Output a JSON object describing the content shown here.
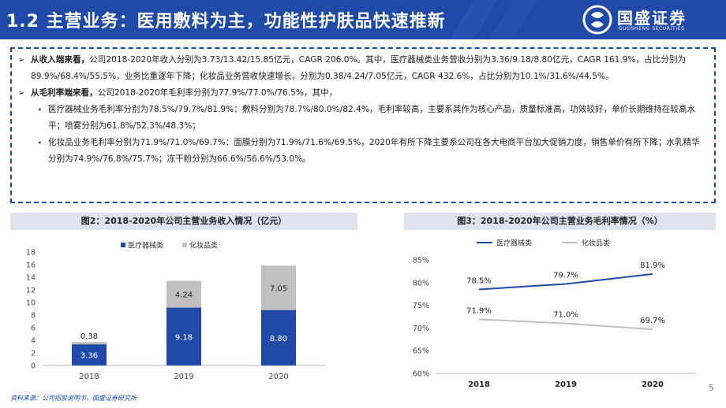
{
  "header": {
    "title": "1.2 主营业务：医用敷料为主，功能性护肤品快速推新",
    "logo_cn": "国盛证券",
    "logo_en": "GUOSHENG SECURITIES"
  },
  "colors": {
    "brand": "#1f4aa8",
    "medical": "#1f4aa8",
    "cosmetics": "#c0c0c0"
  },
  "icons": {
    "bullet_main": "arrow-bullet-icon",
    "bullet_sub": "dot-bullet-icon",
    "logo": "guosheng-logo-icon"
  },
  "content": {
    "p1": {
      "lead": "从收入端来看，",
      "text": "公司2018-2020年收入分别为3.73/13.42/15.85亿元，CAGR 206.0%。其中，医疗器械类业务营收分别为3.36/9.18/8.80亿元，CAGR 161.9%，占比分别为89.9%/68.4%/55.5%，业务比重逐年下降；化妆品业务营收快速增长，分别为0.38/4.24/7.05亿元，CAGR 432.6%，占比分别为10.1%/31.6%/44.5%。"
    },
    "p2": {
      "lead": "从毛利率端来看，",
      "text": "公司2018-2020年毛利率分别为77.9%/77.0%/76.5%，其中，"
    },
    "sub1": "医疗器械业务毛利率分别为78.5%/79.7%/81.9%：敷料分别为78.7%/80.0%/82.4%，毛利率较高，主要系其作为核心产品，质量标准高，功效较好，单价长期维持在较高水平；喷雾分别为61.8%/52.3%/48.3%；",
    "sub2": "化妆品业务毛利率分别为71.9%/71.0%/69.7%：面膜分别为71.9%/71.6%/69.5%，2020年有所下降主要系公司在各大电商平台加大促销力度，销售单价有所下降；水乳精华分别为74.9%/76.8%/75.7%；冻干粉分别为66.6%/56.6%/53.0%。"
  },
  "figures": {
    "fig1_title": "图2：2018-2020年公司主营业务收入情况（亿元）",
    "fig2_title": "图3：2018-2020年公司主营业务毛利率情况（%）"
  },
  "chart_data": [
    {
      "type": "bar",
      "stacked": true,
      "categories": [
        "2018",
        "2019",
        "2020"
      ],
      "series": [
        {
          "name": "医疗器械类",
          "values": [
            3.36,
            9.18,
            8.8
          ],
          "color": "#1f4aa8"
        },
        {
          "name": "化妆品类",
          "values": [
            0.38,
            4.24,
            7.05
          ],
          "color": "#c0c0c0"
        }
      ],
      "data_labels": [
        [
          "3.36",
          "9.18",
          "8.80"
        ],
        [
          "0.38",
          "4.24",
          "7.05"
        ]
      ],
      "ylim": [
        0,
        18
      ],
      "yticks": [
        "0",
        "2",
        "4",
        "6",
        "8",
        "10",
        "12",
        "14",
        "16",
        "18"
      ],
      "legend": "top-left",
      "grid": false
    },
    {
      "type": "line",
      "categories": [
        "2018",
        "2019",
        "2020"
      ],
      "series": [
        {
          "name": "医疗器械类",
          "values": [
            78.5,
            79.7,
            81.9
          ],
          "color": "#1f4aa8"
        },
        {
          "name": "化妆品类",
          "values": [
            71.9,
            71.0,
            69.7
          ],
          "color": "#c0c0c0"
        }
      ],
      "data_labels": [
        [
          "78.5%",
          "79.7%",
          "81.9%"
        ],
        [
          "71.9%",
          "71.0%",
          "69.7%"
        ]
      ],
      "ylim": [
        60,
        85
      ],
      "yticks": [
        "60%",
        "65%",
        "70%",
        "75%",
        "80%",
        "85%"
      ],
      "legend": "top",
      "grid": false
    }
  ],
  "footer": {
    "source": "资料来源：公司招股说明书，国盛证券研究所",
    "page": "5"
  }
}
